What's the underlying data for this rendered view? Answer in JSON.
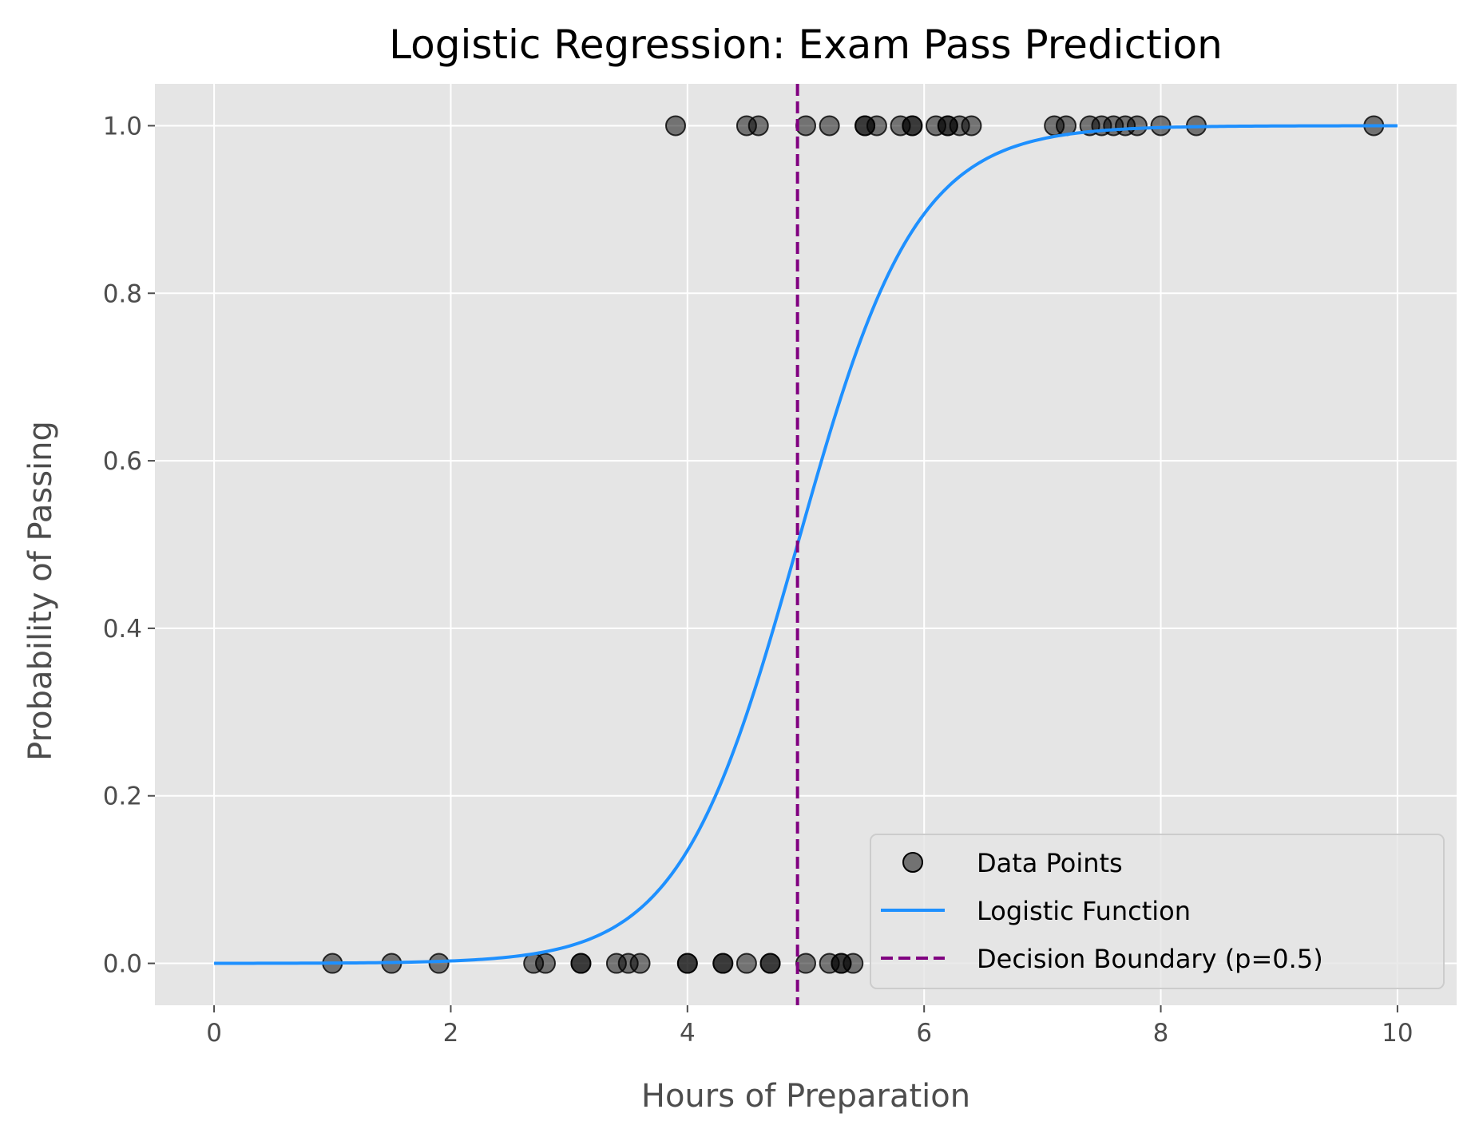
{
  "chart_data": {
    "type": "scatter",
    "title": "Logistic Regression: Exam Pass Prediction",
    "xlabel": "Hours of Preparation",
    "ylabel": "Probability of Passing",
    "xlim": [
      -0.5,
      10.5
    ],
    "ylim": [
      -0.05,
      1.05
    ],
    "xticks": [
      0,
      2,
      4,
      6,
      8,
      10
    ],
    "xtick_labels": [
      "0",
      "2",
      "4",
      "6",
      "8",
      "10"
    ],
    "yticks": [
      0.0,
      0.2,
      0.4,
      0.6,
      0.8,
      1.0
    ],
    "ytick_labels": [
      "0.0",
      "0.2",
      "0.4",
      "0.6",
      "0.8",
      "1.0"
    ],
    "grid": true,
    "legend_position": "lower-right",
    "colors": {
      "background": "#e5e5e5",
      "grid": "#ffffff",
      "points": "#000000",
      "curve": "#1e90ff",
      "boundary": "#800080"
    },
    "series": [
      {
        "name": "Data Points",
        "kind": "scatter",
        "points": [
          [
            1.0,
            0
          ],
          [
            1.5,
            0
          ],
          [
            1.9,
            0
          ],
          [
            2.7,
            0
          ],
          [
            2.8,
            0
          ],
          [
            3.1,
            0
          ],
          [
            3.1,
            0
          ],
          [
            3.4,
            0
          ],
          [
            3.5,
            0
          ],
          [
            3.6,
            0
          ],
          [
            4.0,
            0
          ],
          [
            4.0,
            0
          ],
          [
            4.3,
            0
          ],
          [
            4.3,
            0
          ],
          [
            4.5,
            0
          ],
          [
            4.7,
            0
          ],
          [
            4.7,
            0
          ],
          [
            5.0,
            0
          ],
          [
            5.2,
            0
          ],
          [
            5.3,
            0
          ],
          [
            5.3,
            0
          ],
          [
            5.4,
            0
          ],
          [
            3.9,
            1
          ],
          [
            4.5,
            1
          ],
          [
            4.6,
            1
          ],
          [
            5.0,
            1
          ],
          [
            5.2,
            1
          ],
          [
            5.5,
            1
          ],
          [
            5.5,
            1
          ],
          [
            5.6,
            1
          ],
          [
            5.8,
            1
          ],
          [
            5.9,
            1
          ],
          [
            5.9,
            1
          ],
          [
            6.1,
            1
          ],
          [
            6.2,
            1
          ],
          [
            6.2,
            1
          ],
          [
            6.3,
            1
          ],
          [
            6.4,
            1
          ],
          [
            7.1,
            1
          ],
          [
            7.2,
            1
          ],
          [
            7.4,
            1
          ],
          [
            7.5,
            1
          ],
          [
            7.6,
            1
          ],
          [
            7.7,
            1
          ],
          [
            7.8,
            1
          ],
          [
            8.0,
            1
          ],
          [
            8.3,
            1
          ],
          [
            9.8,
            1
          ]
        ]
      },
      {
        "name": "Logistic Function",
        "kind": "line",
        "x_range": [
          0,
          10
        ],
        "midpoint": 4.93,
        "slope": 2.0
      },
      {
        "name": "Decision Boundary (p=0.5)",
        "kind": "vline",
        "x": 4.93
      }
    ]
  }
}
